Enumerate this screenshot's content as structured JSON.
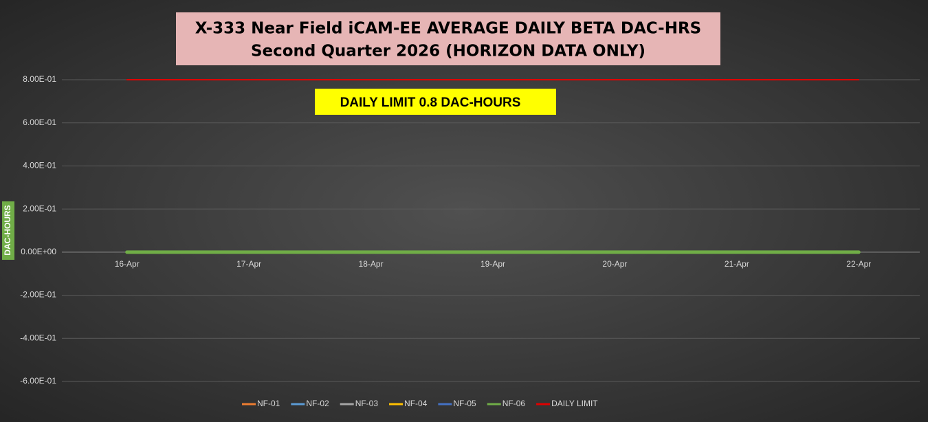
{
  "chart_data": {
    "type": "line",
    "title": "X-333 Near Field iCAM-EE AVERAGE DAILY BETA DAC-HRS",
    "subtitle": "Second Quarter 2026 (HORIZON DATA ONLY)",
    "annotation": "DAILY LIMIT 0.8 DAC-HOURS",
    "y_label": "DAC-HOURS",
    "categories": [
      "16-Apr",
      "17-Apr",
      "18-Apr",
      "19-Apr",
      "20-Apr",
      "21-Apr",
      "22-Apr"
    ],
    "series": [
      {
        "name": "NF-01",
        "color": "#ed7d31",
        "values": [
          0,
          0,
          0,
          0,
          0,
          0,
          0
        ]
      },
      {
        "name": "NF-02",
        "color": "#5b9bd5",
        "values": [
          0,
          0,
          0,
          0,
          0,
          0,
          0
        ]
      },
      {
        "name": "NF-03",
        "color": "#a5a5a5",
        "values": [
          0,
          0,
          0,
          0,
          0,
          0,
          0
        ]
      },
      {
        "name": "NF-04",
        "color": "#ffc000",
        "values": [
          0,
          0,
          0,
          0,
          0,
          0,
          0
        ]
      },
      {
        "name": "NF-05",
        "color": "#4472c4",
        "values": [
          0,
          0,
          0,
          0,
          0,
          0,
          0
        ]
      },
      {
        "name": "NF-06",
        "color": "#70ad47",
        "values": [
          0,
          0,
          0,
          0,
          0,
          0,
          0
        ]
      },
      {
        "name": "DAILY LIMIT",
        "color": "#e00000",
        "values": [
          0.8,
          0.8,
          0.8,
          0.8,
          0.8,
          0.8,
          0.8
        ]
      }
    ],
    "ylim": [
      -0.6,
      0.8
    ],
    "yticks": [
      {
        "value": 0.8,
        "label": "8.00E-01"
      },
      {
        "value": 0.6,
        "label": "6.00E-01"
      },
      {
        "value": 0.4,
        "label": "4.00E-01"
      },
      {
        "value": 0.2,
        "label": "2.00E-01"
      },
      {
        "value": 0,
        "label": "0.00E+00"
      },
      {
        "value": -0.2,
        "label": "-2.00E-01"
      },
      {
        "value": -0.4,
        "label": "-4.00E-01"
      },
      {
        "value": -0.6,
        "label": "-6.00E-01"
      }
    ],
    "grid": true,
    "legend": "bottom"
  }
}
